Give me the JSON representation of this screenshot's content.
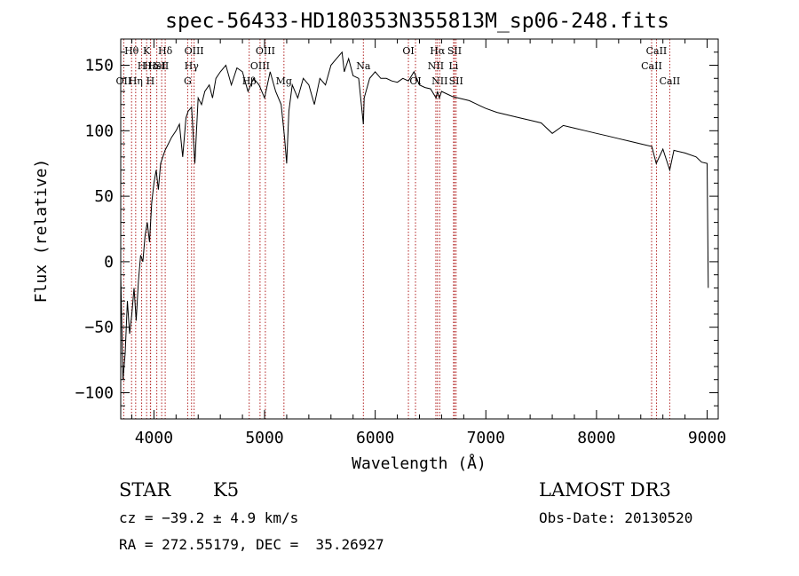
{
  "chart_data": {
    "type": "line",
    "title": "spec-56433-HD180353N355813M_sp06-248.fits",
    "xlabel": "Wavelength (Å)",
    "ylabel": "Flux (relative)",
    "xlim": [
      3700,
      9100
    ],
    "ylim": [
      -120,
      170
    ],
    "xticks": [
      4000,
      5000,
      6000,
      7000,
      8000,
      9000
    ],
    "yticks": [
      -100,
      -50,
      0,
      50,
      100,
      150
    ],
    "xtick_labels": [
      "4000",
      "5000",
      "6000",
      "7000",
      "8000",
      "9000"
    ],
    "ytick_labels": [
      "−100",
      "−50",
      "0",
      "50",
      "100",
      "150"
    ],
    "grid": false,
    "series": [
      {
        "x": [
          3700,
          3720,
          3740,
          3760,
          3780,
          3800,
          3820,
          3840,
          3860,
          3880,
          3900,
          3920,
          3940,
          3960,
          3980,
          4000,
          4020,
          4040,
          4060,
          4080,
          4100,
          4130,
          4160,
          4200,
          4230,
          4260,
          4290,
          4310,
          4340,
          4370,
          4400,
          4430,
          4460,
          4500,
          4530,
          4560,
          4600,
          4650,
          4700,
          4750,
          4800,
          4850,
          4900,
          4950,
          5000,
          5050,
          5100,
          5150,
          5180,
          5200,
          5220,
          5250,
          5300,
          5350,
          5400,
          5450,
          5500,
          5550,
          5600,
          5650,
          5700,
          5720,
          5740,
          5760,
          5800,
          5850,
          5893,
          5900,
          5950,
          6000,
          6050,
          6100,
          6150,
          6200,
          6250,
          6300,
          6350,
          6400,
          6450,
          6500,
          6550,
          6563,
          6580,
          6600,
          6650,
          6700,
          6750,
          6800,
          6850,
          6900,
          6950,
          7000,
          7100,
          7200,
          7300,
          7400,
          7500,
          7600,
          7700,
          7800,
          7900,
          8000,
          8100,
          8200,
          8300,
          8400,
          8500,
          8540,
          8600,
          8662,
          8700,
          8800,
          8900,
          8950,
          9000,
          9010
        ],
        "y": [
          -10,
          -90,
          -70,
          -30,
          -55,
          -40,
          -20,
          -45,
          -15,
          5,
          0,
          20,
          30,
          15,
          45,
          60,
          70,
          55,
          75,
          80,
          85,
          90,
          95,
          100,
          105,
          80,
          110,
          115,
          118,
          75,
          125,
          120,
          130,
          135,
          125,
          140,
          145,
          150,
          135,
          148,
          145,
          130,
          140,
          135,
          125,
          145,
          130,
          120,
          95,
          75,
          115,
          135,
          125,
          140,
          135,
          120,
          140,
          135,
          150,
          155,
          160,
          145,
          150,
          155,
          142,
          140,
          105,
          125,
          140,
          145,
          140,
          140,
          138,
          137,
          140,
          138,
          145,
          135,
          133,
          132,
          125,
          130,
          125,
          130,
          128,
          126,
          125,
          124,
          123,
          121,
          119,
          117,
          114,
          112,
          110,
          108,
          106,
          98,
          104,
          102,
          100,
          98,
          96,
          94,
          92,
          90,
          88,
          75,
          86,
          70,
          85,
          83,
          80,
          76,
          75,
          -20
        ]
      }
    ],
    "lines": [
      {
        "label": "Hθ",
        "x": 3798,
        "row": 0
      },
      {
        "label": "OII",
        "x": 3727,
        "row": 2
      },
      {
        "label": "Hη",
        "x": 3835,
        "row": 2
      },
      {
        "label": "H",
        "x": 3889,
        "row": 1
      },
      {
        "label": "Hε",
        "x": 3970,
        "row": 1
      },
      {
        "label": "K",
        "x": 3934,
        "row": 0
      },
      {
        "label": "H",
        "x": 3968,
        "row": 2
      },
      {
        "label": "HeI",
        "x": 4026,
        "row": 1
      },
      {
        "label": "Hδ",
        "x": 4102,
        "row": 0
      },
      {
        "label": "SII",
        "x": 4070,
        "row": 1
      },
      {
        "label": "OIII",
        "x": 4363,
        "row": 0
      },
      {
        "label": "Hγ",
        "x": 4340,
        "row": 1
      },
      {
        "label": "G",
        "x": 4305,
        "row": 2
      },
      {
        "label": "OIII",
        "x": 5007,
        "row": 0
      },
      {
        "label": "OIII",
        "x": 4959,
        "row": 1
      },
      {
        "label": "Hβ",
        "x": 4861,
        "row": 2
      },
      {
        "label": "Mg",
        "x": 5175,
        "row": 2
      },
      {
        "label": "Na",
        "x": 5893,
        "row": 1
      },
      {
        "label": "OI",
        "x": 6300,
        "row": 0
      },
      {
        "label": "OI",
        "x": 6364,
        "row": 2
      },
      {
        "label": "Hα",
        "x": 6563,
        "row": 0
      },
      {
        "label": "NII",
        "x": 6548,
        "row": 1
      },
      {
        "label": "NII",
        "x": 6583,
        "row": 2
      },
      {
        "label": "SII",
        "x": 6717,
        "row": 0
      },
      {
        "label": "Li",
        "x": 6708,
        "row": 1
      },
      {
        "label": "SII",
        "x": 6731,
        "row": 2
      },
      {
        "label": "CaII",
        "x": 8542,
        "row": 0
      },
      {
        "label": "CaII",
        "x": 8498,
        "row": 1
      },
      {
        "label": "CaII",
        "x": 8662,
        "row": 2
      }
    ]
  },
  "info": {
    "class": "STAR",
    "subclass": "K5",
    "survey": "LAMOST DR3",
    "cz": "cz = −39.2 ± 4.9 km/s",
    "obs_date": "Obs-Date: 20130520",
    "coords": "RA = 272.55179, DEC =  35.26927"
  }
}
